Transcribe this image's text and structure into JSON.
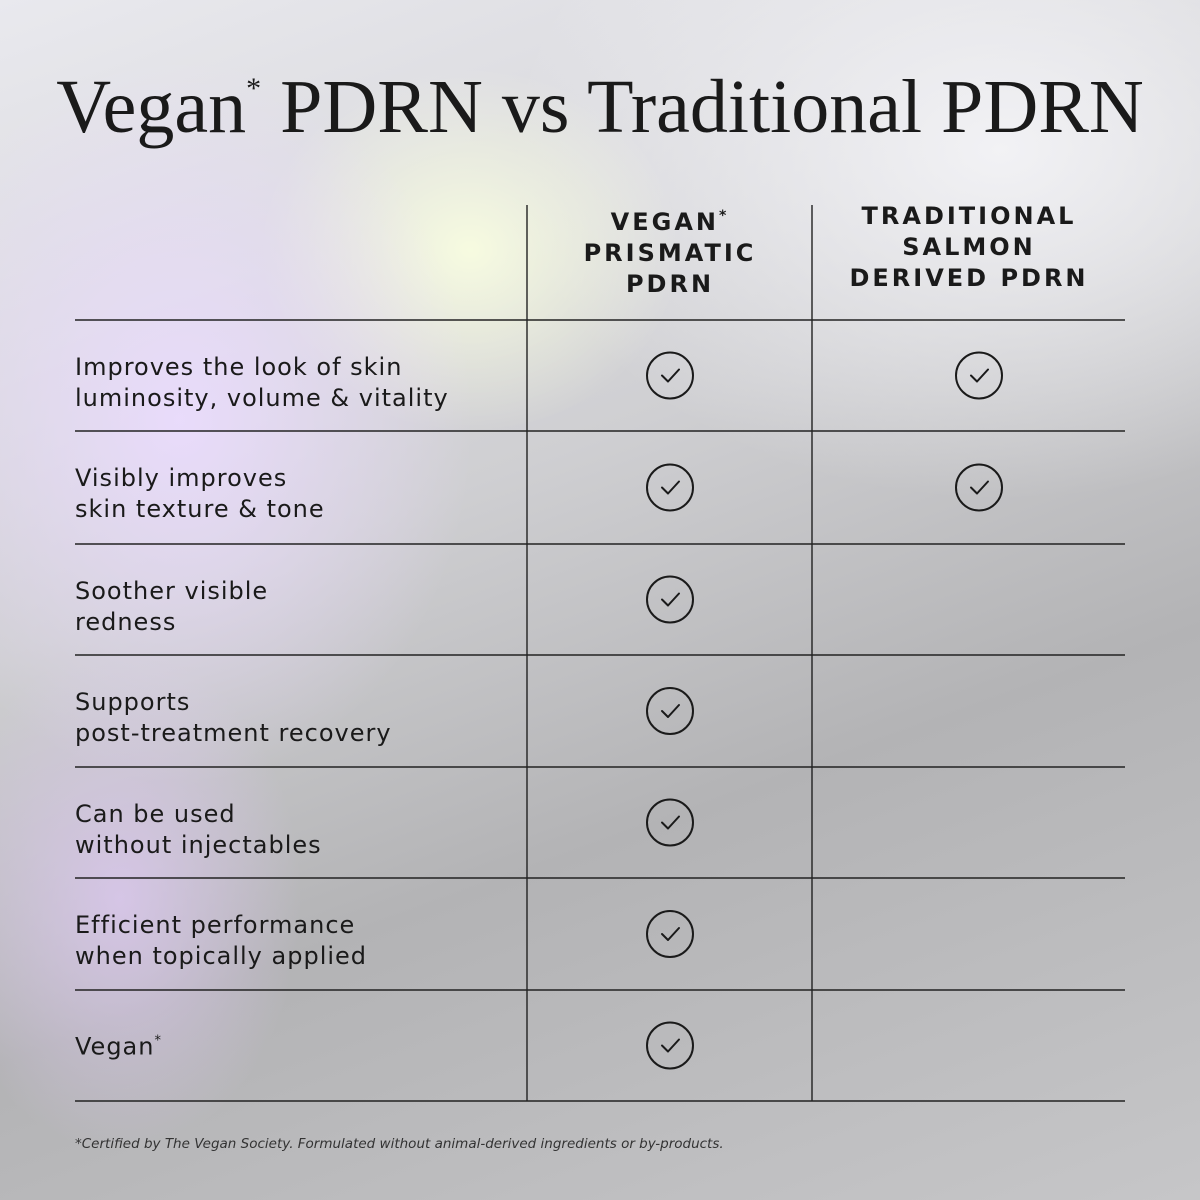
{
  "header": {
    "title": "Vegan",
    "title_mark": "*",
    "title_rest": " PDRN vs Traditional PDRN"
  },
  "table": {
    "columns": [
      {
        "lines": [
          "VEGAN",
          "PRISMATIC",
          "PDRN"
        ],
        "mark": "*"
      },
      {
        "lines": [
          "TRADITIONAL",
          "SALMON",
          "DERIVED PDRN"
        ]
      }
    ],
    "rows": [
      {
        "lines": [
          "Improves the look of skin",
          "luminosity, volume & vitality"
        ],
        "checks": [
          true,
          true
        ]
      },
      {
        "lines": [
          "Visibly improves",
          "skin texture & tone"
        ],
        "checks": [
          true,
          true
        ]
      },
      {
        "lines": [
          "Soother visible",
          "redness"
        ],
        "checks": [
          true,
          false
        ]
      },
      {
        "lines": [
          "Supports",
          "post-treatment recovery"
        ],
        "checks": [
          true,
          false
        ]
      },
      {
        "lines": [
          "Can be used",
          "without injectables"
        ],
        "checks": [
          true,
          false
        ]
      },
      {
        "lines": [
          "Efficient performance",
          "when topically applied"
        ],
        "checks": [
          true,
          false
        ]
      },
      {
        "lines": [
          "Vegan"
        ],
        "mark": "*",
        "checks": [
          true,
          false
        ]
      }
    ]
  },
  "footnote": "*Certified by The Vegan Society. Formulated without animal-derived ingredients or by-products."
}
